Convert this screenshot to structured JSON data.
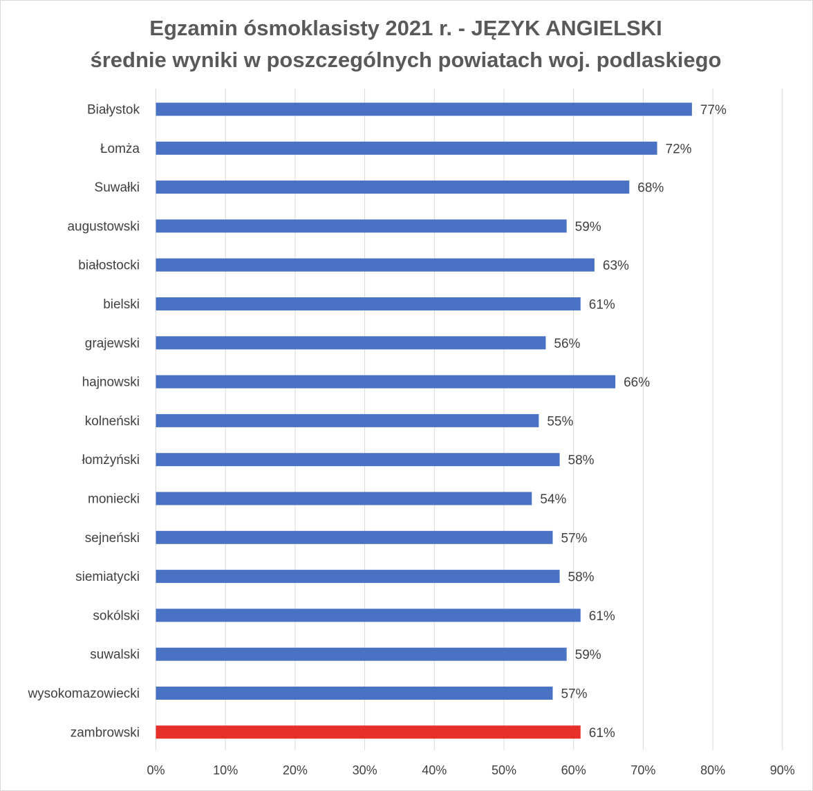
{
  "chart_data": {
    "type": "bar",
    "orientation": "horizontal",
    "title": "Egzamin ósmoklasisty 2021 r. - JĘZYK ANGIELSKI",
    "subtitle": "średnie wyniki w poszczególnych powiatach woj. podlaskiego",
    "categories": [
      "Białystok",
      "Łomża",
      "Suwałki",
      "augustowski",
      "białostocki",
      "bielski",
      "grajewski",
      "hajnowski",
      "kolneński",
      "łomżyński",
      "moniecki",
      "sejneński",
      "siemiatycki",
      "sokólski",
      "suwalski",
      "wysokomazowiecki",
      "zambrowski"
    ],
    "values": [
      77,
      72,
      68,
      59,
      63,
      61,
      56,
      66,
      55,
      58,
      54,
      57,
      58,
      61,
      59,
      57,
      61
    ],
    "data_labels": [
      "77%",
      "72%",
      "68%",
      "59%",
      "63%",
      "61%",
      "56%",
      "66%",
      "55%",
      "58%",
      "54%",
      "57%",
      "58%",
      "61%",
      "59%",
      "57%",
      "61%"
    ],
    "xlim": [
      0,
      90
    ],
    "x_ticks": [
      0,
      10,
      20,
      30,
      40,
      50,
      60,
      70,
      80,
      90
    ],
    "x_tick_labels": [
      "0%",
      "10%",
      "20%",
      "30%",
      "40%",
      "50%",
      "60%",
      "70%",
      "80%",
      "90%"
    ],
    "grid": "vertical",
    "legend": "none",
    "colors": {
      "default": "#4a72c4",
      "highlight": "#e8302a"
    },
    "highlight_category": "zambrowski"
  }
}
